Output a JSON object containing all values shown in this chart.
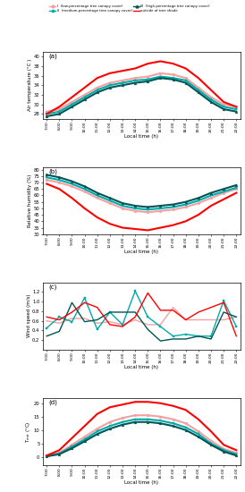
{
  "time_labels": [
    "7:00",
    "8:00",
    "9:00",
    "10:00",
    "11:00",
    "12:00",
    "13:00",
    "14:00",
    "15:00",
    "16:00",
    "17:00",
    "18:00",
    "19:00",
    "20:00",
    "21:00",
    "22:00"
  ],
  "time_x": [
    0,
    1,
    2,
    3,
    4,
    5,
    6,
    7,
    8,
    9,
    10,
    11,
    12,
    13,
    14,
    15
  ],
  "panel_a_ylabel": "Air temperature (°C )",
  "panel_a_ylim": [
    27,
    41
  ],
  "panel_a_yticks": [
    28,
    30,
    32,
    34,
    36,
    38,
    40
  ],
  "panel_a_I": [
    28.5,
    29.0,
    30.5,
    32.0,
    33.5,
    34.5,
    35.0,
    35.5,
    35.8,
    36.5,
    36.2,
    35.5,
    33.5,
    31.5,
    30.0,
    29.5
  ],
  "panel_a_II": [
    28.0,
    28.5,
    30.0,
    31.5,
    33.0,
    34.0,
    34.5,
    35.0,
    35.2,
    35.8,
    35.5,
    35.0,
    33.0,
    31.0,
    29.5,
    29.0
  ],
  "panel_a_III": [
    27.5,
    28.0,
    29.5,
    31.0,
    32.5,
    33.5,
    34.0,
    34.5,
    34.8,
    35.5,
    35.2,
    34.5,
    32.5,
    30.5,
    29.0,
    28.5
  ],
  "panel_a_out": [
    28.0,
    29.5,
    31.5,
    33.5,
    35.5,
    36.5,
    37.0,
    37.5,
    38.5,
    39.0,
    38.5,
    37.5,
    35.5,
    33.0,
    30.5,
    29.5
  ],
  "panel_b_ylabel": "Relative humidity (%)",
  "panel_b_ylim": [
    30,
    82
  ],
  "panel_b_yticks": [
    30,
    35,
    40,
    45,
    50,
    55,
    60,
    65,
    70,
    75,
    80
  ],
  "panel_b_I": [
    72,
    70,
    67,
    63,
    58,
    54,
    50,
    48,
    47,
    48,
    49,
    51,
    54,
    58,
    62,
    65
  ],
  "panel_b_II": [
    74,
    72,
    69,
    65,
    60,
    56,
    52,
    50,
    49,
    50,
    51,
    53,
    56,
    60,
    63,
    66
  ],
  "panel_b_III": [
    76,
    74,
    71,
    67,
    62,
    58,
    54,
    52,
    51,
    52,
    53,
    55,
    58,
    62,
    65,
    68
  ],
  "panel_b_out": [
    69,
    65,
    58,
    50,
    43,
    38,
    35,
    34,
    33,
    35,
    37,
    40,
    45,
    52,
    57,
    62
  ],
  "panel_c_ylabel": "Wind speed (m/s)",
  "panel_c_ylim": [
    0.0,
    1.4
  ],
  "panel_c_yticks": [
    0.2,
    0.4,
    0.6,
    0.8,
    1.0,
    1.2
  ],
  "panel_c_I": [
    0.6,
    0.55,
    0.65,
    0.65,
    0.55,
    0.58,
    0.52,
    0.62,
    0.52,
    0.52,
    0.88,
    0.62,
    0.62,
    0.62,
    0.62,
    0.68
  ],
  "panel_c_II": [
    0.45,
    0.68,
    0.58,
    1.08,
    0.42,
    0.78,
    0.52,
    1.22,
    0.68,
    0.48,
    0.28,
    0.32,
    0.28,
    0.28,
    1.02,
    0.48
  ],
  "panel_c_III": [
    0.28,
    0.38,
    0.98,
    0.58,
    0.62,
    0.78,
    0.78,
    0.78,
    0.42,
    0.18,
    0.22,
    0.22,
    0.28,
    0.22,
    0.78,
    0.68
  ],
  "panel_c_out": [
    0.68,
    0.62,
    0.78,
    0.98,
    0.88,
    0.52,
    0.48,
    0.68,
    1.18,
    0.82,
    0.82,
    0.62,
    0.78,
    0.88,
    0.98,
    0.28
  ],
  "panel_d_ylabel": "T$_{mrt}$ (°C)",
  "panel_d_ylim": [
    -3,
    22
  ],
  "panel_d_yticks": [
    0,
    5,
    10,
    15,
    20
  ],
  "panel_d_I": [
    0.5,
    1.5,
    4.5,
    7.5,
    10.5,
    13.0,
    14.5,
    15.5,
    15.5,
    15.0,
    14.0,
    12.5,
    9.5,
    6.0,
    3.0,
    1.5
  ],
  "panel_d_II": [
    0.3,
    1.2,
    3.8,
    6.5,
    9.5,
    11.5,
    13.0,
    14.0,
    14.0,
    13.5,
    12.5,
    11.0,
    8.5,
    5.0,
    2.5,
    1.0
  ],
  "panel_d_III": [
    0.2,
    1.0,
    3.2,
    5.8,
    8.5,
    10.5,
    12.0,
    13.0,
    13.0,
    12.5,
    11.5,
    10.0,
    7.5,
    4.5,
    2.0,
    0.5
  ],
  "panel_d_out": [
    0.5,
    2.5,
    7.0,
    11.5,
    16.0,
    18.5,
    19.5,
    20.5,
    20.5,
    20.0,
    19.0,
    17.5,
    14.0,
    9.5,
    4.5,
    2.5
  ],
  "color_I": "#F4A0A0",
  "color_II": "#00AAAA",
  "color_III": "#005555",
  "color_out": "#FF0000",
  "legend_I": "I  (low-percentage tree canopy cover)",
  "legend_II": "II  (medium-percentage tree canopy cover)",
  "legend_III": "III  (high-percentage tree canopy cover)",
  "legend_out": "outside of tree shade",
  "xlabel": "Local time (h)"
}
